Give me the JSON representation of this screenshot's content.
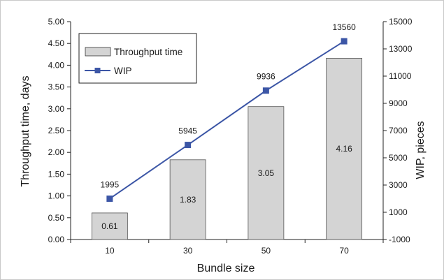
{
  "chart_data": {
    "type": "bar",
    "title": "",
    "xlabel": "Bundle size",
    "ylabel": "Throughput time, days",
    "y2label": "WIP, pieces",
    "categories": [
      "10",
      "30",
      "50",
      "70"
    ],
    "ylim": [
      0,
      5
    ],
    "y2lim": [
      -1000,
      15000
    ],
    "yticks": [
      "0.00",
      "0.50",
      "1.00",
      "1.50",
      "2.00",
      "2.50",
      "3.00",
      "3.50",
      "4.00",
      "4.50",
      "5.00"
    ],
    "y2ticks": [
      "-1000",
      "1000",
      "3000",
      "5000",
      "7000",
      "9000",
      "11000",
      "13000",
      "15000"
    ],
    "legend_position": "top-left",
    "grid": false,
    "series": [
      {
        "name": "Throughput time",
        "type": "bar",
        "axis": "left",
        "values": [
          0.61,
          1.83,
          3.05,
          4.16
        ],
        "labels": [
          "0.61",
          "1.83",
          "3.05",
          "4.16"
        ],
        "color": "#d4d4d4"
      },
      {
        "name": "WIP",
        "type": "line",
        "axis": "right",
        "values": [
          1995,
          5945,
          9936,
          13560
        ],
        "labels": [
          "1995",
          "5945",
          "9936",
          "13560"
        ],
        "color": "#3c56a6"
      }
    ]
  }
}
